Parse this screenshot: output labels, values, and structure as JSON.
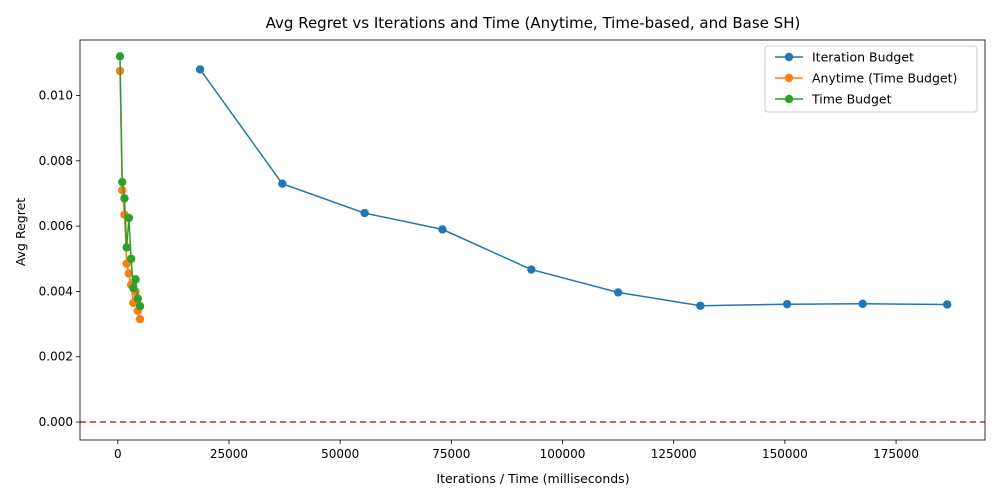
{
  "chart_data": {
    "type": "line",
    "title": "Avg Regret vs Iterations and Time (Anytime, Time-based, and Base SH)",
    "xlabel": "Iterations / Time (milliseconds)",
    "ylabel": "Avg Regret",
    "xlim": [
      -8500,
      195000
    ],
    "ylim": [
      -0.00055,
      0.0117
    ],
    "xticks": [
      0,
      25000,
      50000,
      75000,
      100000,
      125000,
      150000,
      175000
    ],
    "xtick_labels": [
      "0",
      "25000",
      "50000",
      "75000",
      "100000",
      "125000",
      "150000",
      "175000"
    ],
    "yticks": [
      0,
      0.002,
      0.004,
      0.006,
      0.008,
      0.01
    ],
    "ytick_labels": [
      "0.000",
      "0.002",
      "0.004",
      "0.006",
      "0.008",
      "0.010"
    ],
    "grid": false,
    "legend_position": "top-right",
    "reference_line": {
      "y": 0,
      "color": "#d62728",
      "style": "dashed"
    },
    "series": [
      {
        "name": "Iteration Budget",
        "color": "#1f77b4",
        "x": [
          18500,
          37000,
          55500,
          73000,
          93000,
          112500,
          131000,
          150500,
          167500,
          186500
        ],
        "y": [
          0.0108,
          0.0073,
          0.0064,
          0.0059,
          0.00467,
          0.00397,
          0.00356,
          0.00361,
          0.00362,
          0.0036
        ]
      },
      {
        "name": "Anytime (Time Budget)",
        "color": "#ff7f0e",
        "x": [
          500,
          1000,
          1500,
          2000,
          2500,
          3000,
          3500,
          4000,
          4500,
          5000
        ],
        "y": [
          0.01075,
          0.0071,
          0.00635,
          0.00485,
          0.00455,
          0.0042,
          0.00365,
          0.004,
          0.0034,
          0.00315
        ]
      },
      {
        "name": "Time Budget",
        "color": "#2ca02c",
        "x": [
          500,
          1000,
          1500,
          2000,
          2500,
          3000,
          3500,
          4000,
          4500,
          5000
        ],
        "y": [
          0.0112,
          0.00735,
          0.00685,
          0.00535,
          0.00625,
          0.005,
          0.0041,
          0.00437,
          0.00378,
          0.00355
        ]
      }
    ]
  }
}
